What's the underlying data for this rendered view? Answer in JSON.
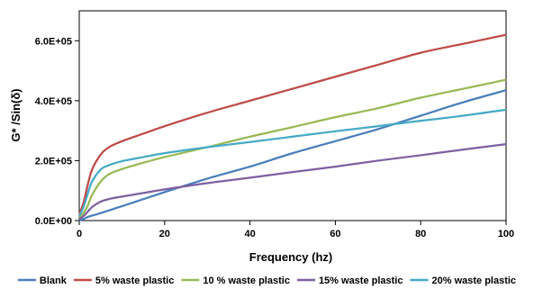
{
  "chart_data": {
    "type": "line",
    "title": "",
    "xlabel": "Frequency (hz)",
    "ylabel": "G* /Sin(δ)",
    "xlim": [
      0,
      100
    ],
    "ylim": [
      0,
      700000
    ],
    "x_ticks": [
      0,
      20,
      40,
      60,
      80,
      100
    ],
    "x_tick_labels": [
      "0",
      "20",
      "40",
      "60",
      "80",
      "100"
    ],
    "y_ticks": [
      0,
      200000,
      400000,
      600000
    ],
    "y_tick_labels": [
      "0.0E+00",
      "2.0E+05",
      "4.0E+05",
      "6.0E+05"
    ],
    "grid": false,
    "legend_position": "bottom",
    "series": [
      {
        "name": "Blank",
        "color": "#4a7ebb",
        "x": [
          0,
          1,
          2,
          5,
          10,
          20,
          30,
          40,
          50,
          60,
          70,
          80,
          90,
          100
        ],
        "values": [
          0,
          5000,
          12000,
          25000,
          48000,
          95000,
          140000,
          180000,
          225000,
          265000,
          305000,
          350000,
          395000,
          435000
        ]
      },
      {
        "name": "5% waste plastic",
        "color": "#be4b48",
        "x": [
          0,
          1,
          2,
          3,
          5,
          7,
          10,
          15,
          20,
          30,
          40,
          50,
          60,
          70,
          80,
          90,
          100
        ],
        "values": [
          20000,
          60000,
          120000,
          170000,
          220000,
          245000,
          265000,
          290000,
          315000,
          360000,
          400000,
          440000,
          480000,
          520000,
          560000,
          590000,
          620000
        ]
      },
      {
        "name": "10 % waste plastic",
        "color": "#98b954",
        "x": [
          0,
          1,
          2,
          3,
          5,
          7,
          10,
          15,
          20,
          30,
          40,
          50,
          60,
          70,
          80,
          90,
          100
        ],
        "values": [
          10000,
          25000,
          50000,
          85000,
          130000,
          155000,
          172000,
          193000,
          212000,
          245000,
          280000,
          312000,
          345000,
          375000,
          410000,
          440000,
          470000
        ]
      },
      {
        "name": "15% waste plastic",
        "color": "#7d60a0",
        "x": [
          0,
          1,
          2,
          3,
          5,
          7,
          10,
          15,
          20,
          30,
          40,
          50,
          60,
          70,
          80,
          90,
          100
        ],
        "values": [
          5000,
          15000,
          30000,
          45000,
          63000,
          72000,
          80000,
          92000,
          104000,
          125000,
          143000,
          162000,
          180000,
          200000,
          218000,
          237000,
          255000
        ]
      },
      {
        "name": "20% waste plastic",
        "color": "#46aac5",
        "x": [
          0,
          1,
          2,
          3,
          5,
          7,
          10,
          15,
          20,
          30,
          40,
          50,
          60,
          70,
          80,
          90,
          100
        ],
        "values": [
          15000,
          45000,
          90000,
          130000,
          170000,
          185000,
          198000,
          212000,
          225000,
          245000,
          262000,
          280000,
          298000,
          315000,
          333000,
          350000,
          370000
        ]
      }
    ]
  }
}
